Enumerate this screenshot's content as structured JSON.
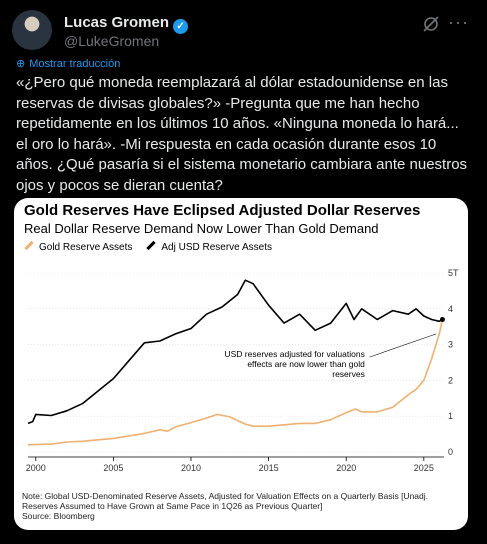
{
  "tweet": {
    "author_name": "Lucas Gromen",
    "handle": "@LukeGromen",
    "translate_label": "Mostrar traducción",
    "text": "«¿Pero qué moneda reemplazará al dólar estadounidense en las reservas de divisas globales?» -Pregunta que me han hecho repetidamente en los últimos 10 años. «Ninguna moneda lo hará... el oro lo hará». -Mi respuesta en cada ocasión durante esos 10 años. ¿Qué pasaría si el sistema monetario cambiara ante nuestros ojos y pocos se dieran cuenta?",
    "verified_icon": "verified-badge-icon",
    "grok_icon": "grok-icon",
    "more_icon": "more-icon",
    "more_glyph": "···",
    "accent_color": "#1d9bf0"
  },
  "chart_data": {
    "type": "line",
    "title": "Gold Reserves Have Eclipsed Adjusted Dollar Reserves",
    "subtitle": "Real Dollar Reserve Demand Now Lower Than Gold Demand",
    "ylim": [
      0,
      5
    ],
    "xlim": [
      1999.5,
      2026.3
    ],
    "yticks": [
      "0",
      "1",
      "2",
      "3",
      "4",
      "5T"
    ],
    "xticks": [
      "2000",
      "2005",
      "2010",
      "2015",
      "2020",
      "2025"
    ],
    "legend_placement": "top-left",
    "annotation": "USD reserves adjusted for valuations effects are now lower than gold reserves",
    "note": "Note: Global USD-Denominated Reserve Assets, Adjusted for Valuation Effects on a Quarterly Basis [Unadj. Reserves Assumed to Have Grown at Same Pace in 1Q26 as Previous Quarter]",
    "source": "Source: Bloomberg",
    "series": [
      {
        "name": "Gold Reserve Assets",
        "color": "#f0b070",
        "x": [
          1999.5,
          2001,
          2002,
          2003,
          2004,
          2005,
          2006,
          2007,
          2008,
          2008.5,
          2009,
          2010,
          2011,
          2011.7,
          2012.5,
          2013.5,
          2014,
          2015,
          2016,
          2017,
          2018,
          2019,
          2019.5,
          2020,
          2020.6,
          2021,
          2022,
          2023,
          2024,
          2024.5,
          2025,
          2025.5,
          2026,
          2026.2
        ],
        "values": [
          0.2,
          0.22,
          0.28,
          0.3,
          0.34,
          0.38,
          0.45,
          0.52,
          0.62,
          0.58,
          0.7,
          0.82,
          0.95,
          1.05,
          0.98,
          0.78,
          0.72,
          0.72,
          0.76,
          0.8,
          0.8,
          0.9,
          1.0,
          1.1,
          1.2,
          1.12,
          1.12,
          1.25,
          1.6,
          1.75,
          2.0,
          2.6,
          3.3,
          3.7
        ]
      },
      {
        "name": "Adj USD Reserve Assets",
        "color": "#000000",
        "x": [
          1999.5,
          1999.8,
          2000,
          2001,
          2002,
          2003,
          2004,
          2005,
          2006,
          2007,
          2008,
          2009,
          2010,
          2011,
          2012,
          2013,
          2013.5,
          2014,
          2015,
          2016,
          2017,
          2018,
          2019,
          2020,
          2020.5,
          2021,
          2022,
          2023,
          2024,
          2024.5,
          2025,
          2025.5,
          2026,
          2026.2
        ],
        "values": [
          0.8,
          0.85,
          1.05,
          1.02,
          1.15,
          1.35,
          1.7,
          2.05,
          2.55,
          3.05,
          3.1,
          3.3,
          3.45,
          3.85,
          4.05,
          4.4,
          4.8,
          4.7,
          4.1,
          3.6,
          3.85,
          3.4,
          3.6,
          4.15,
          3.7,
          4.0,
          3.7,
          3.95,
          3.85,
          4.0,
          3.8,
          3.7,
          3.65,
          3.7
        ]
      }
    ]
  }
}
